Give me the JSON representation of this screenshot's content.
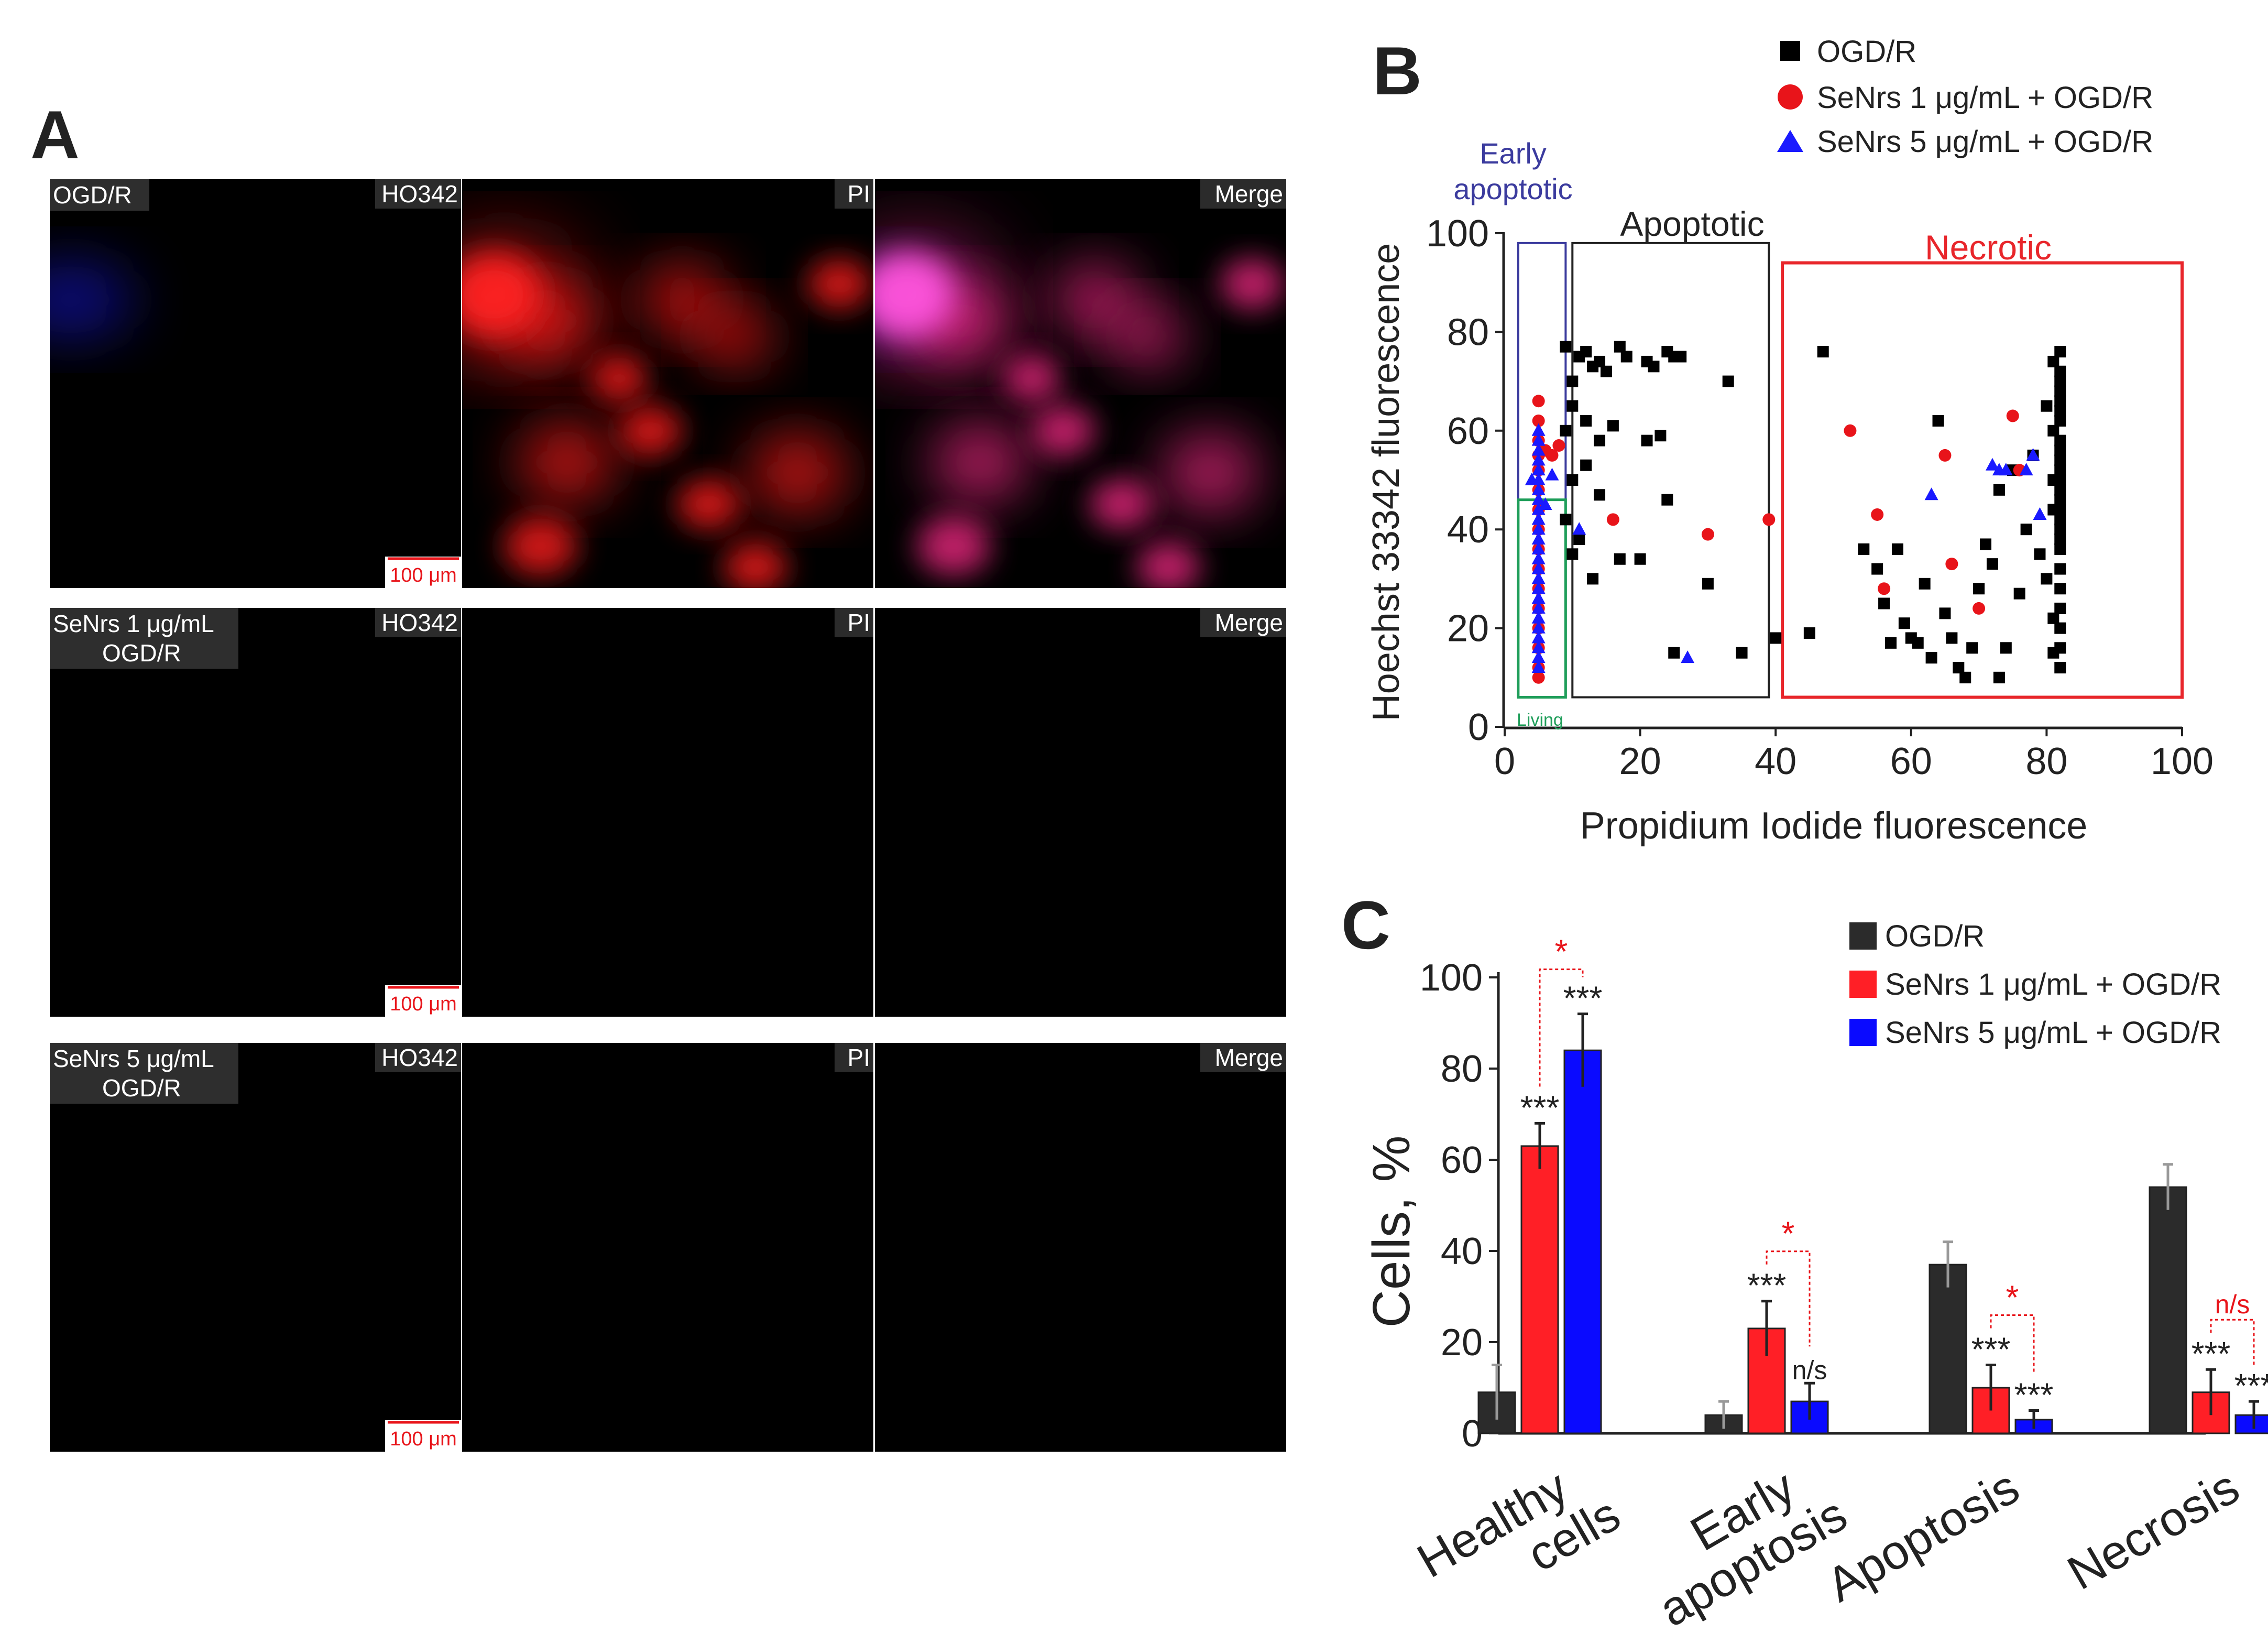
{
  "figure": {
    "panels": {
      "a": "A",
      "b": "B",
      "c": "C"
    }
  },
  "panel_a": {
    "rows": [
      {
        "condition_lines": [
          "OGD/R"
        ]
      },
      {
        "condition_lines": [
          "SeNrs 1 μg/mL",
          "OGD/R"
        ]
      },
      {
        "condition_lines": [
          "SeNrs 5 μg/mL",
          "OGD/R"
        ]
      }
    ],
    "channels": [
      "HO342",
      "PI",
      "Merge"
    ],
    "scale_bar": "100 μm",
    "colors": {
      "nuclei": "#1a1aff",
      "pi": "#ff1a1a",
      "merge_overlap": "#ff33cc",
      "label_bg": "#333333"
    }
  },
  "panel_b": {
    "legend": [
      "OGD/R",
      "SeNrs 1 μg/mL + OGD/R",
      "SeNrs 5 μg/mL + OGD/R"
    ],
    "region_labels": {
      "early": [
        "Early",
        "apoptotic"
      ],
      "apoptotic": "Apoptotic",
      "necrotic": "Necrotic",
      "living": "Living"
    },
    "colors": {
      "early": "#3b3b9e",
      "apoptotic": "#222222",
      "necrotic": "#e8262b",
      "living": "#1f9e5a",
      "ogdr": "#000000",
      "senrs1": "#e8141a",
      "senrs5": "#1a1aff"
    }
  },
  "panel_c": {
    "legend": [
      "OGD/R",
      "SeNrs 1 μg/mL + OGD/R",
      "SeNrs 5 μg/mL + OGD/R"
    ],
    "colors": {
      "ogdr": "#2b2b2b",
      "senrs1": "#ff1f26",
      "senrs5": "#0a0aff",
      "sig_red": "#e8141a"
    }
  },
  "chart_data": [
    {
      "type": "scatter",
      "title": "",
      "xlabel": "Propidium Iodide  fluorescence",
      "ylabel": "Hoechst 33342  fluorescence",
      "xlim": [
        0,
        100
      ],
      "ylim": [
        0,
        100
      ],
      "xticks": [
        0,
        20,
        40,
        60,
        80,
        100
      ],
      "yticks": [
        0,
        20,
        40,
        60,
        80,
        100
      ],
      "gates": {
        "early_apoptotic": {
          "x": [
            2,
            9
          ],
          "y": [
            46,
            98
          ]
        },
        "living": {
          "x": [
            2,
            9
          ],
          "y": [
            6,
            46
          ]
        },
        "apoptotic": {
          "x": [
            10,
            39
          ],
          "y": [
            6,
            98
          ]
        },
        "necrotic": {
          "x": [
            41,
            100
          ],
          "y": [
            6,
            94
          ]
        }
      },
      "series": [
        {
          "name": "OGD/R",
          "marker": "square",
          "points": [
            [
              9,
              77
            ],
            [
              10,
              70
            ],
            [
              11,
              75
            ],
            [
              12,
              76
            ],
            [
              13,
              73
            ],
            [
              14,
              74
            ],
            [
              15,
              72
            ],
            [
              17,
              77
            ],
            [
              18,
              75
            ],
            [
              21,
              74
            ],
            [
              22,
              73
            ],
            [
              24,
              76
            ],
            [
              25,
              75
            ],
            [
              26,
              75
            ],
            [
              33,
              70
            ],
            [
              9,
              60
            ],
            [
              10,
              65
            ],
            [
              12,
              62
            ],
            [
              14,
              58
            ],
            [
              16,
              61
            ],
            [
              21,
              58
            ],
            [
              23,
              59
            ],
            [
              24,
              46
            ],
            [
              12,
              53
            ],
            [
              10,
              50
            ],
            [
              14,
              47
            ],
            [
              9,
              42
            ],
            [
              11,
              38
            ],
            [
              10,
              35
            ],
            [
              13,
              30
            ],
            [
              17,
              34
            ],
            [
              20,
              34
            ],
            [
              25,
              15
            ],
            [
              30,
              29
            ],
            [
              35,
              15
            ],
            [
              40,
              18
            ],
            [
              45,
              19
            ],
            [
              47,
              76
            ],
            [
              53,
              36
            ],
            [
              55,
              32
            ],
            [
              56,
              25
            ],
            [
              57,
              17
            ],
            [
              58,
              36
            ],
            [
              59,
              21
            ],
            [
              60,
              18
            ],
            [
              61,
              17
            ],
            [
              62,
              29
            ],
            [
              63,
              14
            ],
            [
              64,
              62
            ],
            [
              65,
              23
            ],
            [
              66,
              18
            ],
            [
              67,
              12
            ],
            [
              68,
              10
            ],
            [
              69,
              16
            ],
            [
              70,
              28
            ],
            [
              71,
              37
            ],
            [
              72,
              33
            ],
            [
              73,
              48
            ],
            [
              73,
              10
            ],
            [
              74,
              16
            ],
            [
              75,
              52
            ],
            [
              76,
              27
            ],
            [
              77,
              40
            ],
            [
              78,
              55
            ],
            [
              79,
              35
            ],
            [
              80,
              65
            ],
            [
              80,
              30
            ],
            [
              81,
              22
            ],
            [
              81,
              15
            ],
            [
              81,
              60
            ],
            [
              82,
              76
            ],
            [
              82,
              72
            ],
            [
              82,
              70
            ],
            [
              82,
              68
            ],
            [
              82,
              66
            ],
            [
              82,
              64
            ],
            [
              82,
              62
            ],
            [
              82,
              58
            ],
            [
              82,
              56
            ],
            [
              82,
              54
            ],
            [
              82,
              52
            ],
            [
              82,
              50
            ],
            [
              82,
              48
            ],
            [
              82,
              46
            ],
            [
              82,
              44
            ],
            [
              82,
              42
            ],
            [
              82,
              40
            ],
            [
              82,
              38
            ],
            [
              82,
              36
            ],
            [
              82,
              32
            ],
            [
              82,
              28
            ],
            [
              82,
              24
            ],
            [
              82,
              20
            ],
            [
              82,
              16
            ],
            [
              82,
              12
            ],
            [
              81,
              74
            ],
            [
              81,
              50
            ],
            [
              81,
              44
            ]
          ]
        },
        {
          "name": "SeNrs 1 μg/mL + OGD/R",
          "marker": "circle",
          "points": [
            [
              5,
              66
            ],
            [
              5,
              62
            ],
            [
              5,
              58
            ],
            [
              5,
              55
            ],
            [
              5,
              52
            ],
            [
              5,
              48
            ],
            [
              5,
              44
            ],
            [
              5,
              40
            ],
            [
              5,
              36
            ],
            [
              5,
              32
            ],
            [
              5,
              28
            ],
            [
              5,
              24
            ],
            [
              5,
              20
            ],
            [
              5,
              16
            ],
            [
              5,
              12
            ],
            [
              5,
              10
            ],
            [
              6,
              56
            ],
            [
              7,
              55
            ],
            [
              8,
              57
            ],
            [
              16,
              42
            ],
            [
              30,
              39
            ],
            [
              39,
              42
            ],
            [
              51,
              60
            ],
            [
              55,
              43
            ],
            [
              56,
              28
            ],
            [
              65,
              55
            ],
            [
              66,
              33
            ],
            [
              70,
              24
            ],
            [
              75,
              63
            ],
            [
              76,
              52
            ]
          ]
        },
        {
          "name": "SeNrs 5 μg/mL + OGD/R",
          "marker": "triangle",
          "points": [
            [
              5,
              60
            ],
            [
              5,
              58
            ],
            [
              5,
              56
            ],
            [
              5,
              54
            ],
            [
              5,
              52
            ],
            [
              5,
              50
            ],
            [
              5,
              48
            ],
            [
              5,
              46
            ],
            [
              5,
              44
            ],
            [
              5,
              42
            ],
            [
              5,
              40
            ],
            [
              5,
              38
            ],
            [
              5,
              36
            ],
            [
              5,
              34
            ],
            [
              5,
              32
            ],
            [
              5,
              30
            ],
            [
              5,
              28
            ],
            [
              5,
              26
            ],
            [
              5,
              24
            ],
            [
              5,
              22
            ],
            [
              5,
              20
            ],
            [
              5,
              18
            ],
            [
              5,
              16
            ],
            [
              5,
              14
            ],
            [
              5,
              12
            ],
            [
              4,
              50
            ],
            [
              6,
              45
            ],
            [
              7,
              51
            ],
            [
              11,
              40
            ],
            [
              27,
              14
            ],
            [
              63,
              47
            ],
            [
              72,
              53
            ],
            [
              73,
              52
            ],
            [
              74,
              52
            ],
            [
              77,
              52
            ],
            [
              78,
              55
            ],
            [
              79,
              43
            ]
          ]
        }
      ]
    },
    {
      "type": "bar",
      "title": "",
      "xlabel": "",
      "ylabel": "Cells, %",
      "ylim": [
        0,
        100
      ],
      "yticks": [
        0,
        20,
        40,
        60,
        80,
        100
      ],
      "categories": [
        [
          "Healthy",
          "cells"
        ],
        [
          "Early",
          "apoptosis"
        ],
        [
          "Apoptosis"
        ],
        [
          "Necrosis"
        ]
      ],
      "series": [
        {
          "name": "OGD/R",
          "values": [
            9,
            4,
            37,
            54
          ],
          "errors": [
            6,
            3,
            5,
            5
          ],
          "marks": [
            "",
            "",
            "",
            ""
          ]
        },
        {
          "name": "SeNrs 1 μg/mL + OGD/R",
          "values": [
            63,
            23,
            10,
            9
          ],
          "errors": [
            5,
            6,
            5,
            5
          ],
          "marks": [
            "***",
            "***",
            "***",
            "***"
          ]
        },
        {
          "name": "SeNrs 5 μg/mL + OGD/R",
          "values": [
            84,
            7,
            3,
            4
          ],
          "errors": [
            8,
            4,
            2,
            3
          ],
          "marks": [
            "***",
            "n/s",
            "***",
            "***"
          ]
        }
      ],
      "between_treatment_marks": [
        "*",
        "*",
        "*",
        "n/s"
      ]
    }
  ]
}
